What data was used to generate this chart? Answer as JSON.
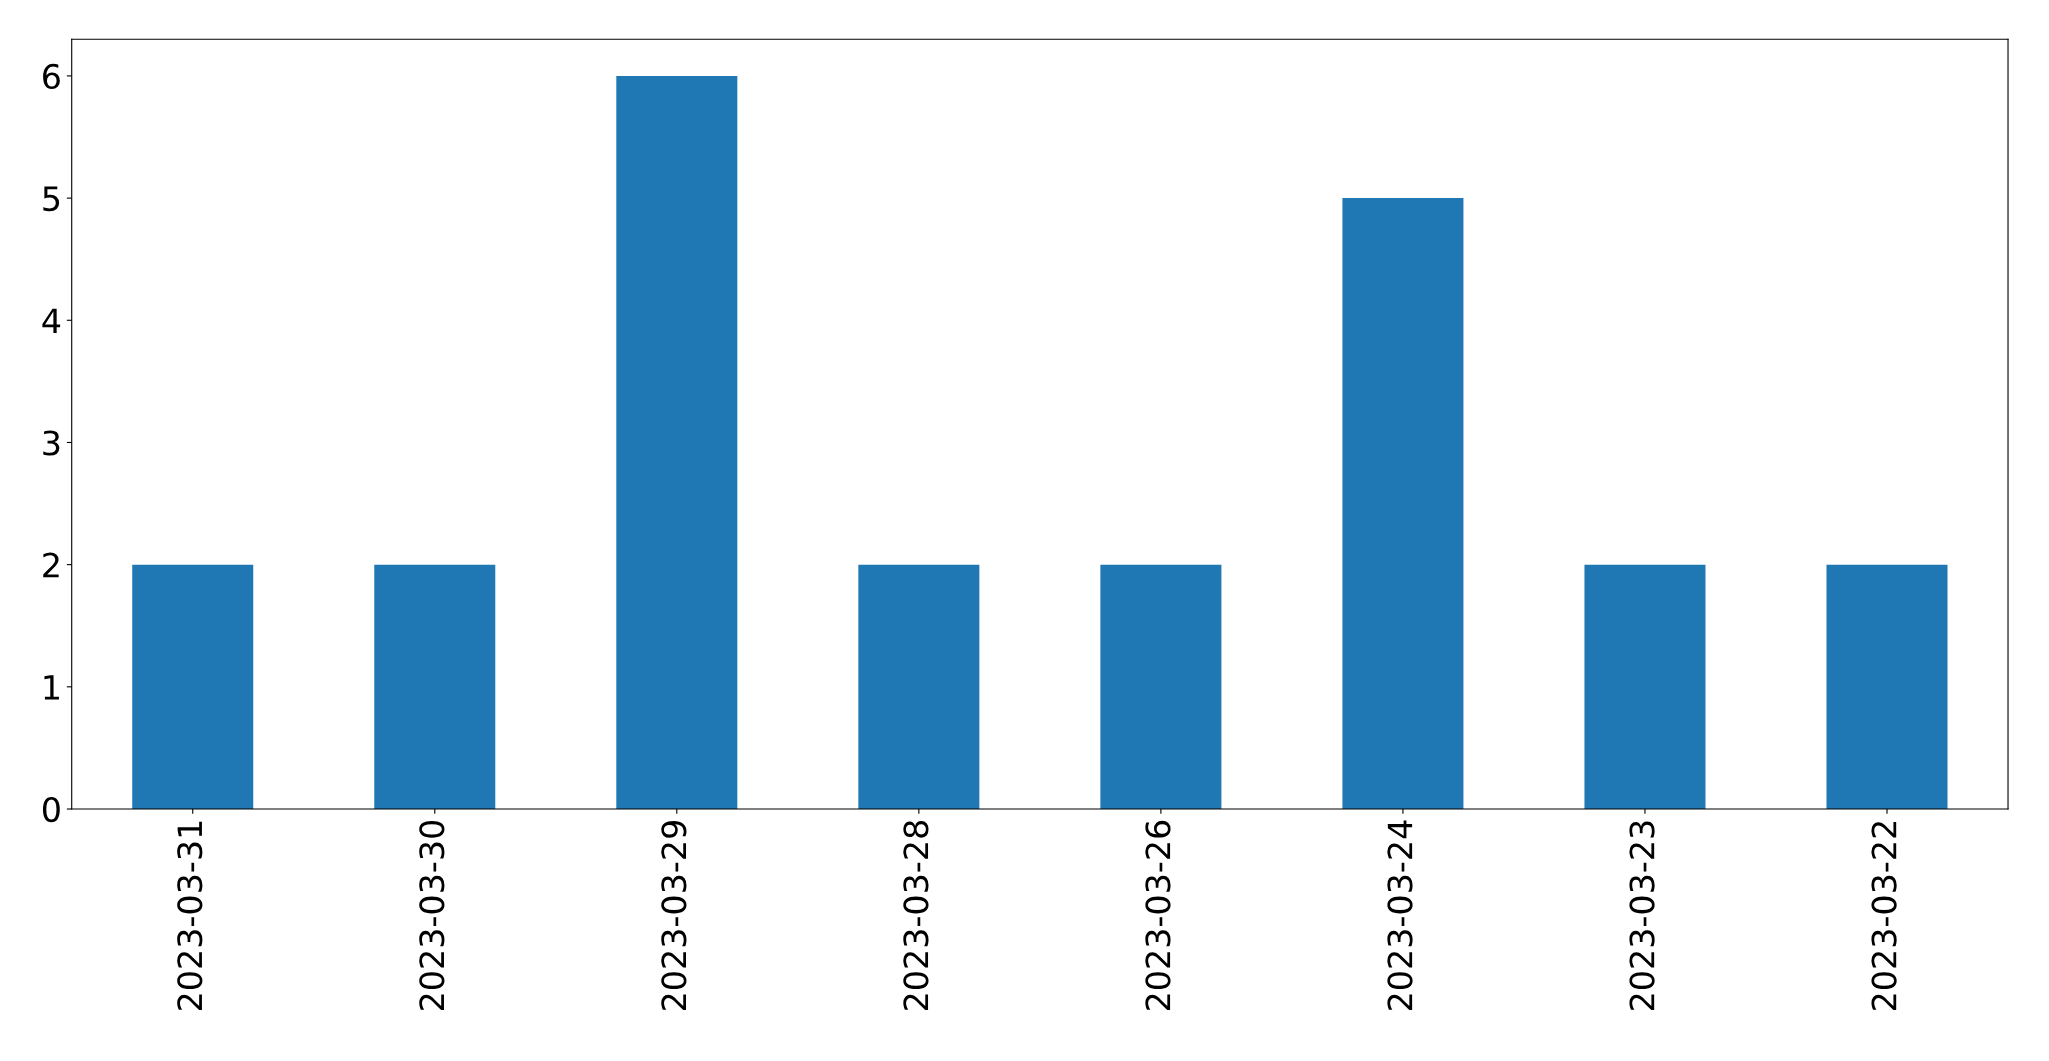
{
  "chart_data": {
    "type": "bar",
    "categories": [
      "2023-03-31",
      "2023-03-30",
      "2023-03-29",
      "2023-03-28",
      "2023-03-26",
      "2023-03-24",
      "2023-03-23",
      "2023-03-22"
    ],
    "values": [
      2,
      2,
      6,
      2,
      2,
      5,
      2,
      2
    ],
    "color": "#1f77b4",
    "ylim": [
      0,
      6.3
    ],
    "yticks": [
      0,
      1,
      2,
      3,
      4,
      5,
      6
    ],
    "grid": false
  }
}
